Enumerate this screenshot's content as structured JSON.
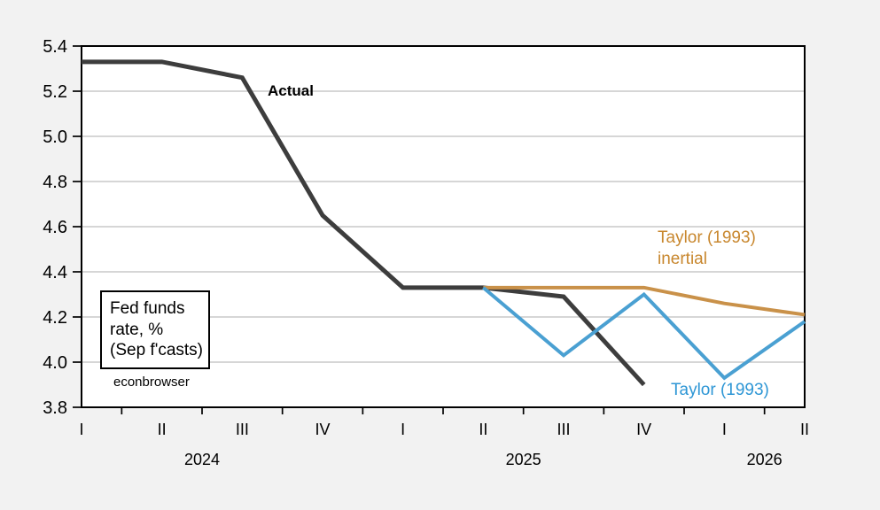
{
  "chart_data": {
    "type": "line",
    "title": "",
    "xlabel": "",
    "ylabel": "",
    "ylim": [
      3.8,
      5.4
    ],
    "yticks": [
      "3.8",
      "4.0",
      "4.2",
      "4.4",
      "4.6",
      "4.8",
      "5.0",
      "5.2",
      "5.4"
    ],
    "grid": "horizontal",
    "legend": "none (direct series labels on chart)",
    "x_quarters": [
      "I",
      "II",
      "III",
      "IV",
      "I",
      "II",
      "III",
      "IV",
      "I",
      "II"
    ],
    "years": [
      {
        "label": "2024",
        "span": [
          0,
          3
        ]
      },
      {
        "label": "2025",
        "span": [
          4,
          7
        ]
      },
      {
        "label": "2026",
        "span": [
          8,
          9
        ]
      }
    ],
    "series": [
      {
        "name": "Actual",
        "color": "#3d3d3d",
        "stroke_width": 5,
        "values": [
          5.33,
          5.33,
          5.26,
          4.65,
          4.33,
          4.33,
          4.29,
          3.9,
          null,
          null
        ]
      },
      {
        "name": "Taylor (1993) inertial",
        "color": "#c99149",
        "stroke_width": 4,
        "values": [
          null,
          null,
          null,
          null,
          null,
          4.33,
          4.33,
          4.33,
          4.26,
          4.21
        ]
      },
      {
        "name": "Taylor (1993)",
        "color": "#4aa0d2",
        "stroke_width": 4,
        "values": [
          null,
          null,
          null,
          null,
          null,
          4.33,
          4.03,
          4.3,
          3.93,
          4.18
        ]
      }
    ],
    "annotations": {
      "actual": {
        "text": "Actual",
        "color": "#000000"
      },
      "inertial": {
        "line1": "Taylor (1993)",
        "line2": "inertial",
        "color": "#c8872e"
      },
      "taylor": {
        "text": "Taylor (1993)",
        "color": "#2d96d5"
      }
    }
  },
  "textbox": {
    "lines": [
      "Fed funds",
      "rate, %",
      "(Sep f'casts)"
    ]
  },
  "watermark": {
    "text": "econbrowser"
  },
  "colors": {
    "page_bg": "#f2f2f2",
    "plot_bg": "#ffffff",
    "grid": "#bdbdbd",
    "axis": "#000000",
    "tick_label": "#000000"
  }
}
